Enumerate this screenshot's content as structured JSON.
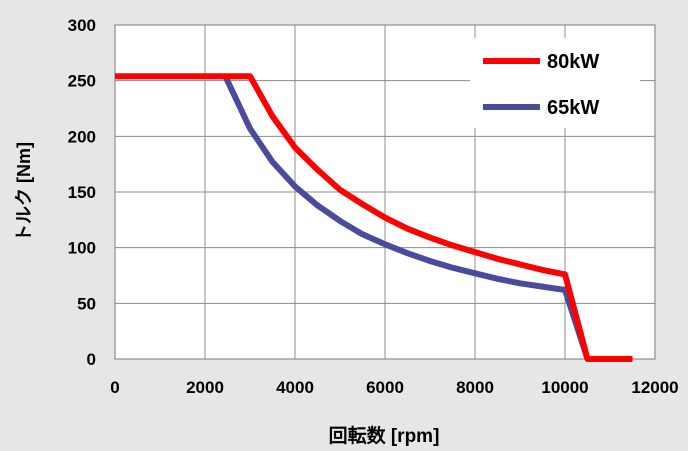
{
  "chart_data": {
    "type": "line",
    "title": "",
    "xlabel": "回転数 [rpm]",
    "ylabel": "トルク [Nm]",
    "xlim": [
      0,
      12000
    ],
    "ylim": [
      0,
      300
    ],
    "xticks": [
      0,
      2000,
      4000,
      6000,
      8000,
      10000,
      12000
    ],
    "yticks": [
      0,
      50,
      100,
      150,
      200,
      250,
      300
    ],
    "grid": true,
    "legend": "top-right",
    "series": [
      {
        "name": "80kW",
        "color": "#ff0000",
        "points": [
          [
            0,
            254
          ],
          [
            3000,
            254
          ],
          [
            3500,
            218
          ],
          [
            4000,
            190
          ],
          [
            4500,
            170
          ],
          [
            5000,
            152
          ],
          [
            5500,
            139
          ],
          [
            6000,
            127
          ],
          [
            6500,
            117
          ],
          [
            7000,
            109
          ],
          [
            7500,
            102
          ],
          [
            8000,
            96
          ],
          [
            8500,
            90
          ],
          [
            9000,
            85
          ],
          [
            9500,
            80
          ],
          [
            10000,
            76
          ],
          [
            10500,
            0
          ],
          [
            11500,
            0
          ]
        ]
      },
      {
        "name": "65kW",
        "color": "#4b4b9e",
        "points": [
          [
            2450,
            254
          ],
          [
            3000,
            207
          ],
          [
            3500,
            177
          ],
          [
            4000,
            155
          ],
          [
            4500,
            138
          ],
          [
            5000,
            124
          ],
          [
            5500,
            112
          ],
          [
            6000,
            103
          ],
          [
            6500,
            95
          ],
          [
            7000,
            88
          ],
          [
            7500,
            82
          ],
          [
            8000,
            77
          ],
          [
            8500,
            72
          ],
          [
            9000,
            68
          ],
          [
            9500,
            65
          ],
          [
            10000,
            62
          ],
          [
            10500,
            0
          ]
        ]
      }
    ]
  }
}
